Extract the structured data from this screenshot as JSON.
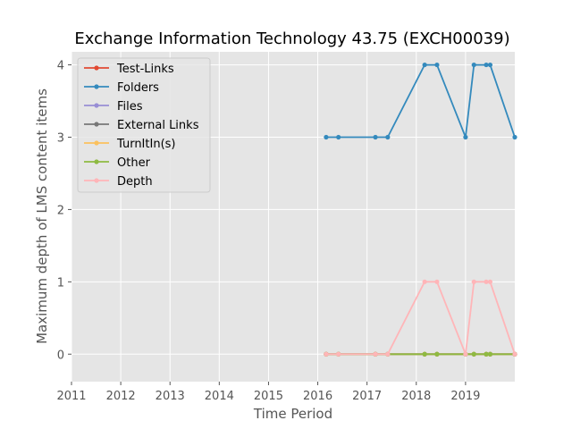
{
  "chart_data": {
    "type": "line",
    "title": "Exchange Information Technology 43.75 (EXCH00039)",
    "xlabel": "Time Period",
    "ylabel": "Maximum depth of LMS content items",
    "xlim": [
      2011.0,
      2020.0
    ],
    "ylim": [
      -0.38,
      4.18
    ],
    "xticks": [
      "2011",
      "2012",
      "2013",
      "2014",
      "2015",
      "2016",
      "2017",
      "2018",
      "2019"
    ],
    "yticks": [
      "0",
      "1",
      "2",
      "3",
      "4"
    ],
    "grid": true,
    "legend_position": "top-left",
    "x": [
      2016.17,
      2016.42,
      2017.17,
      2017.42,
      2018.17,
      2018.42,
      2019.0,
      2019.17,
      2019.42,
      2019.5,
      2020.0
    ],
    "series": [
      {
        "name": "Test-Links",
        "color": "#e24a33",
        "values": [
          0,
          0,
          0,
          0,
          0,
          0,
          0,
          0,
          0,
          0,
          0
        ]
      },
      {
        "name": "Folders",
        "color": "#348abd",
        "values": [
          3,
          3,
          3,
          3,
          4,
          4,
          3,
          4,
          4,
          4,
          3
        ]
      },
      {
        "name": "Files",
        "color": "#988ed5",
        "values": [
          0,
          0,
          0,
          0,
          0,
          0,
          0,
          0,
          0,
          0,
          0
        ]
      },
      {
        "name": "External Links",
        "color": "#777777",
        "values": [
          0,
          0,
          0,
          0,
          0,
          0,
          0,
          0,
          0,
          0,
          0
        ]
      },
      {
        "name": "TurnItIn(s)",
        "color": "#fbc15e",
        "values": [
          0,
          0,
          0,
          0,
          0,
          0,
          0,
          0,
          0,
          0,
          0
        ]
      },
      {
        "name": "Other",
        "color": "#8eba42",
        "values": [
          0,
          0,
          0,
          0,
          0,
          0,
          0,
          0,
          0,
          0,
          0
        ]
      },
      {
        "name": "Depth",
        "color": "#ffb5b8",
        "values": [
          0,
          0,
          0,
          0,
          1,
          1,
          0,
          1,
          1,
          1,
          0
        ]
      }
    ]
  }
}
